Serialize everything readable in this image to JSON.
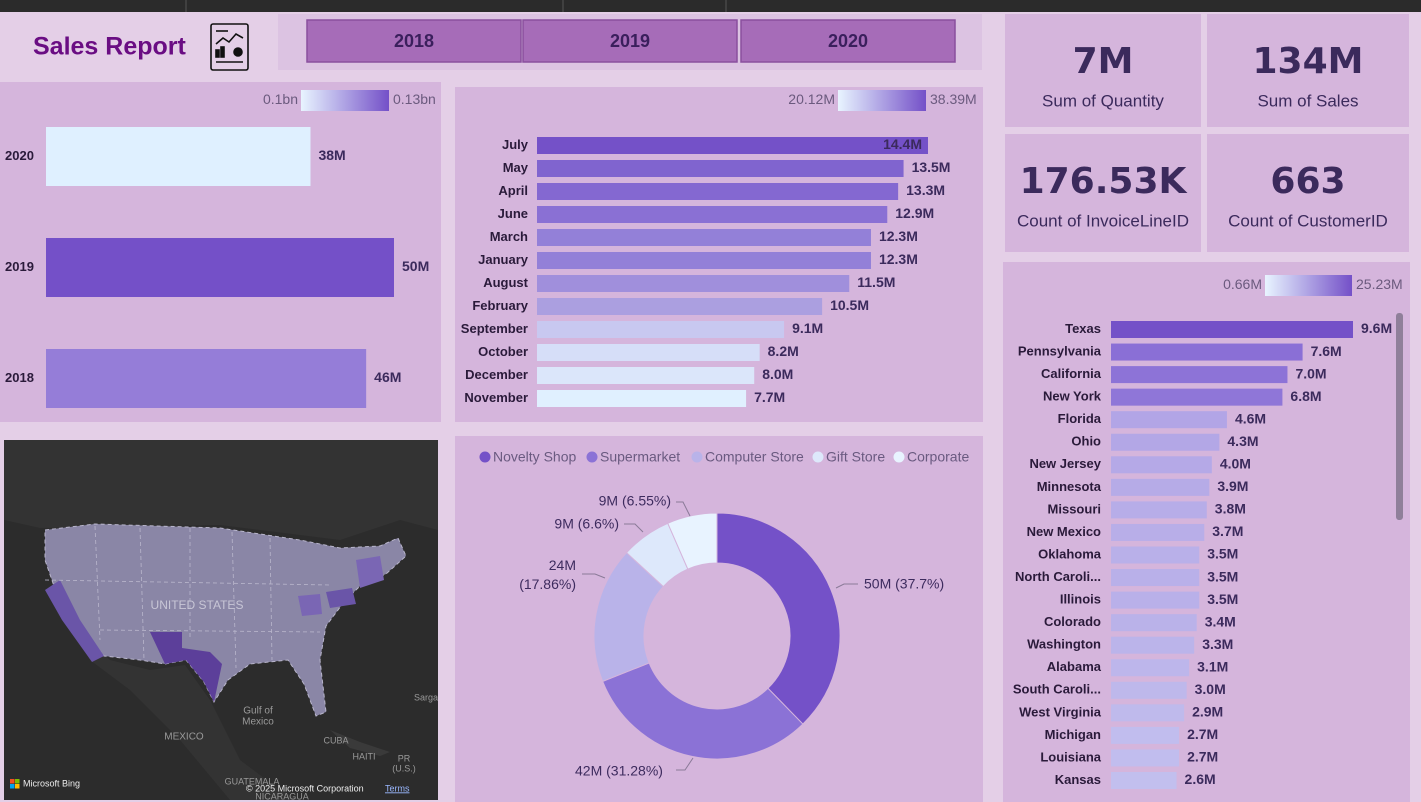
{
  "header": {
    "title": "Sales Report"
  },
  "slicer": {
    "options": [
      "2018",
      "2019",
      "2020"
    ]
  },
  "cards": [
    {
      "value": "7M",
      "label": "Sum of Quantity"
    },
    {
      "value": "134M",
      "label": "Sum of Sales"
    },
    {
      "value": "176.53K",
      "label": "Count of InvoiceLineID"
    },
    {
      "value": "663",
      "label": "Count of CustomerID"
    }
  ],
  "map": {
    "labels": [
      "UNITED STATES",
      "MEXICO",
      "Gulf of",
      "Mexico",
      "CUBA",
      "HAITI",
      "PR",
      "(U.S.)",
      "GUATEMALA",
      "NICARAGUA",
      "Sarga"
    ],
    "provider": "Microsoft Bing",
    "copyright": "© 2025 Microsoft Corporation",
    "terms": "Terms"
  },
  "chart_data": [
    {
      "type": "bar",
      "orientation": "horizontal",
      "categories": [
        "2020",
        "2019",
        "2018"
      ],
      "values": [
        38,
        50,
        46
      ],
      "value_labels": [
        "38M",
        "50M",
        "46M"
      ],
      "colors": [
        "#dff0ff",
        "#7450c8",
        "#957dd8"
      ],
      "color_scale": {
        "min_label": "0.1bn",
        "max_label": "0.13bn",
        "colors": [
          "#e8f4ff",
          "#7450c8"
        ]
      }
    },
    {
      "type": "bar",
      "orientation": "horizontal",
      "categories": [
        "July",
        "May",
        "April",
        "June",
        "March",
        "January",
        "August",
        "February",
        "September",
        "October",
        "December",
        "November"
      ],
      "values": [
        14.4,
        13.5,
        13.3,
        12.9,
        12.3,
        12.3,
        11.5,
        10.5,
        9.1,
        8.2,
        8.0,
        7.7
      ],
      "value_labels": [
        "14.4M",
        "13.5M",
        "13.3M",
        "12.9M",
        "12.3M",
        "12.3M",
        "11.5M",
        "10.5M",
        "9.1M",
        "8.2M",
        "8.0M",
        "7.7M"
      ],
      "colors": [
        "#7451c8",
        "#8064cf",
        "#8468d1",
        "#8a70d4",
        "#9380d8",
        "#9380d8",
        "#a08fdc",
        "#ab9fe0",
        "#c8c8f0",
        "#d6def8",
        "#dbe6fa",
        "#e0f0ff"
      ],
      "color_scale": {
        "min_label": "20.12M",
        "max_label": "38.39M",
        "colors": [
          "#e8f4ff",
          "#7450c8"
        ]
      }
    },
    {
      "type": "donut",
      "categories": [
        "Novelty Shop",
        "Supermarket",
        "Computer Store",
        "Gift Store",
        "Corporate"
      ],
      "values": [
        37.7,
        31.28,
        17.86,
        6.6,
        6.55
      ],
      "value_labels": [
        "50M (37.7%)",
        "42M (31.28%)",
        "24M (17.86%)",
        "9M (6.6%)",
        "9M (6.55%)"
      ],
      "colors": [
        "#7451c8",
        "#8b72d6",
        "#b9b3e9",
        "#dde8fb",
        "#e8f3ff"
      ]
    },
    {
      "type": "bar",
      "orientation": "horizontal",
      "categories": [
        "Texas",
        "Pennsylvania",
        "California",
        "New York",
        "Florida",
        "Ohio",
        "New Jersey",
        "Minnesota",
        "Missouri",
        "New Mexico",
        "Oklahoma",
        "North Caroli...",
        "Illinois",
        "Colorado",
        "Washington",
        "Alabama",
        "South Caroli...",
        "West Virginia",
        "Michigan",
        "Louisiana",
        "Kansas"
      ],
      "values": [
        9.6,
        7.6,
        7.0,
        6.8,
        4.6,
        4.3,
        4.0,
        3.9,
        3.8,
        3.7,
        3.5,
        3.5,
        3.5,
        3.4,
        3.3,
        3.1,
        3.0,
        2.9,
        2.7,
        2.7,
        2.6
      ],
      "value_labels": [
        "9.6M",
        "7.6M",
        "7.0M",
        "6.8M",
        "4.6M",
        "4.3M",
        "4.0M",
        "3.9M",
        "3.8M",
        "3.7M",
        "3.5M",
        "3.5M",
        "3.5M",
        "3.4M",
        "3.3M",
        "3.1M",
        "3.0M",
        "2.9M",
        "2.7M",
        "2.7M",
        "2.6M"
      ],
      "colors": [
        "#7451c8",
        "#8a6fd6",
        "#8d73d7",
        "#8f76d8",
        "#b2a5e6",
        "#b3a7e6",
        "#b5a9e7",
        "#b6abe7",
        "#b7ade8",
        "#b8aee8",
        "#b9b0e9",
        "#b9b0e9",
        "#b9b0e9",
        "#bab2e9",
        "#bbb4ea",
        "#bdb6eb",
        "#beb8eb",
        "#bfbaec",
        "#c1bdee",
        "#c1bdee",
        "#c2bfee"
      ],
      "color_scale": {
        "min_label": "0.66M",
        "max_label": "25.23M",
        "colors": [
          "#e8f4ff",
          "#7450c8"
        ]
      }
    }
  ]
}
